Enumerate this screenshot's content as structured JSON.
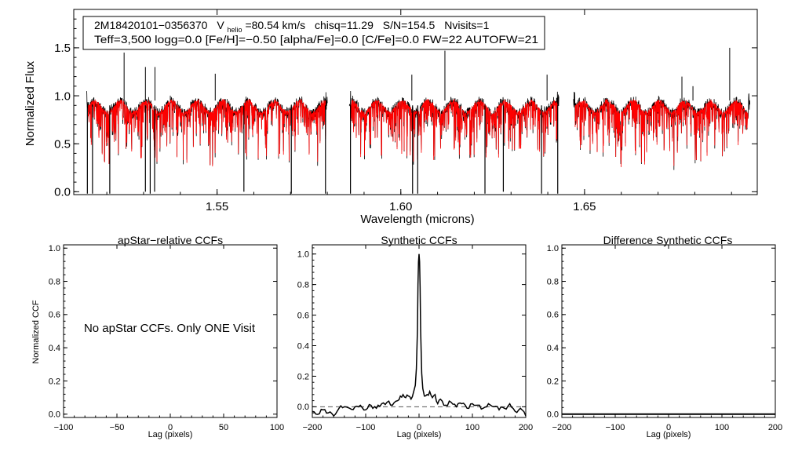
{
  "chart_data": [
    {
      "id": "spectrum",
      "type": "line",
      "title": "",
      "xlabel": "Wavelength (microns)",
      "ylabel": "Normalized Flux",
      "xlim": [
        1.511,
        1.697
      ],
      "ylim": [
        -0.03,
        1.9
      ],
      "xticks": [
        1.55,
        1.6,
        1.65
      ],
      "xtick_labels": [
        "1.55",
        "1.60",
        "1.65"
      ],
      "yticks": [
        0.0,
        0.5,
        1.0,
        1.5
      ],
      "ytick_labels": [
        "0.0",
        "0.5",
        "1.0",
        "1.5"
      ],
      "segments": [
        [
          1.5145,
          1.58
        ],
        [
          1.586,
          1.643
        ],
        [
          1.647,
          1.695
        ]
      ],
      "series": [
        {
          "name": "observed",
          "color": "#000000"
        },
        {
          "name": "synthetic",
          "color": "#ff0000"
        }
      ],
      "deep_lines": [
        [
          1.5147,
          -0.02
        ],
        [
          1.5161,
          -0.02
        ],
        [
          1.5208,
          -0.02
        ],
        [
          1.5305,
          0.0
        ],
        [
          1.5318,
          -0.02
        ],
        [
          1.533,
          0.0
        ],
        [
          1.5573,
          0.0
        ],
        [
          1.5702,
          -0.02
        ],
        [
          1.5795,
          -0.02
        ],
        [
          1.5863,
          -0.02
        ],
        [
          1.6032,
          -0.02
        ],
        [
          1.6046,
          -0.02
        ],
        [
          1.6229,
          -0.02
        ],
        [
          1.6279,
          0.0
        ],
        [
          1.6383,
          -0.02
        ],
        [
          1.6427,
          -0.02
        ]
      ],
      "spikes": [
        [
          1.5247,
          1.45
        ],
        [
          1.5305,
          1.3
        ],
        [
          1.5331,
          1.3
        ],
        [
          1.5495,
          1.23
        ],
        [
          1.603,
          1.22
        ],
        [
          1.612,
          1.47
        ],
        [
          1.6398,
          1.22
        ],
        [
          1.6765,
          1.2
        ],
        [
          1.6795,
          1.1
        ],
        [
          1.6895,
          1.5
        ]
      ],
      "annotation": {
        "star": "2M18420101−0356370",
        "vhelio_prefix": "V",
        "vhelio_sub": "helio",
        "vhelio_value": "=80.54 km/s",
        "chisq": "chisq=11.29",
        "snr": "S/N=154.5",
        "nvisits": "Nvisits=1",
        "line2": "Teff=3,500 logg=0.0 [Fe/H]=−0.50 [alpha/Fe]=0.0 [C/Fe]=0.0 FW=22 AUTOFW=21"
      }
    },
    {
      "id": "apstar-ccf",
      "type": "line",
      "title": "apStar−relative CCFs",
      "xlabel": "Lag (pixels)",
      "ylabel": "Normalized CCF",
      "xlim": [
        -100,
        100
      ],
      "ylim": [
        -0.02,
        1.02
      ],
      "xticks": [
        -100,
        -50,
        0,
        50,
        100
      ],
      "xtick_labels": [
        "−100",
        "−50",
        "0",
        "50",
        "100"
      ],
      "yticks": [
        0.0,
        0.2,
        0.4,
        0.6,
        0.8,
        1.0
      ],
      "ytick_labels": [
        "0.0",
        "0.2",
        "0.4",
        "0.6",
        "0.8",
        "1.0"
      ],
      "message": "No apStar CCFs.  Only ONE Visit"
    },
    {
      "id": "synthetic-ccf",
      "type": "line",
      "title": "Synthetic CCFs",
      "xlabel": "Lag (pixels)",
      "ylabel": "",
      "xlim": [
        -200,
        200
      ],
      "ylim": [
        -0.07,
        1.06
      ],
      "xticks": [
        -200,
        -100,
        0,
        100,
        200
      ],
      "xtick_labels": [
        "−200",
        "−100",
        "0",
        "100",
        "200"
      ],
      "yticks": [
        0.0,
        0.2,
        0.4,
        0.6,
        0.8,
        1.0
      ],
      "ytick_labels": [
        "0.0",
        "0.2",
        "0.4",
        "0.6",
        "0.8",
        "1.0"
      ],
      "baseline": 0.0,
      "ccf_x": [
        -200,
        -190,
        -180,
        -170,
        -160,
        -150,
        -140,
        -130,
        -120,
        -110,
        -100,
        -90,
        -80,
        -70,
        -60,
        -50,
        -40,
        -35,
        -30,
        -25,
        -20,
        -15,
        -10,
        -7,
        -5,
        -3,
        -2,
        -1,
        0,
        1,
        2,
        3,
        5,
        7,
        10,
        15,
        20,
        25,
        30,
        35,
        40,
        50,
        60,
        70,
        80,
        90,
        100,
        110,
        120,
        130,
        140,
        150,
        160,
        170,
        180,
        190,
        200
      ],
      "ccf_y": [
        -0.03,
        -0.05,
        -0.02,
        -0.04,
        -0.06,
        -0.01,
        0.0,
        -0.01,
        0.0,
        0.01,
        -0.02,
        0.01,
        -0.01,
        0.02,
        0.03,
        0.01,
        0.04,
        0.07,
        0.08,
        0.06,
        0.07,
        0.05,
        0.1,
        0.14,
        0.25,
        0.5,
        0.8,
        0.95,
        1.0,
        0.95,
        0.78,
        0.5,
        0.22,
        0.12,
        0.07,
        0.08,
        0.1,
        0.06,
        0.08,
        0.02,
        0.05,
        0.01,
        0.03,
        0.0,
        0.02,
        -0.01,
        0.02,
        0.01,
        -0.01,
        0.02,
        0.0,
        -0.02,
        -0.01,
        0.02,
        -0.03,
        -0.01,
        -0.06
      ]
    },
    {
      "id": "difference-ccf",
      "type": "line",
      "title": "Difference Synthetic CCFs",
      "xlabel": "Lag (pixels)",
      "ylabel": "",
      "xlim": [
        -200,
        200
      ],
      "ylim": [
        -0.02,
        1.02
      ],
      "xticks": [
        -200,
        -100,
        0,
        100,
        200
      ],
      "xtick_labels": [
        "−200",
        "−100",
        "0",
        "100",
        "200"
      ],
      "yticks": [
        0.0,
        0.2,
        0.4,
        0.6,
        0.8,
        1.0
      ],
      "ytick_labels": [
        "0.0",
        "0.2",
        "0.4",
        "0.6",
        "0.8",
        "1.0"
      ],
      "flat_value": 0.0
    }
  ]
}
